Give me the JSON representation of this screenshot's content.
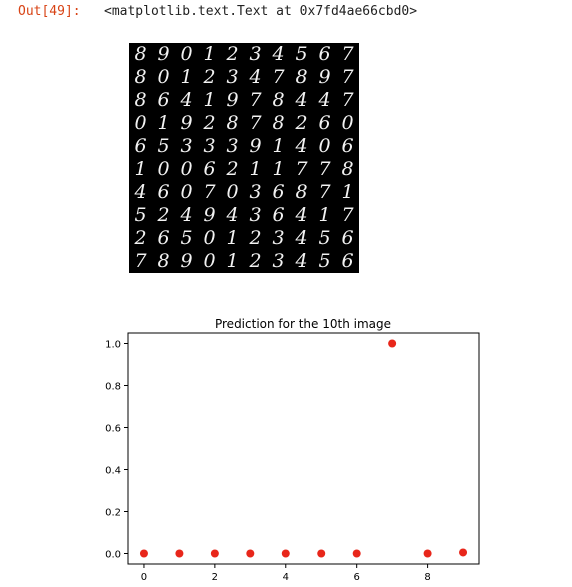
{
  "cell": {
    "prompt": "Out[49]:",
    "output_text": "<matplotlib.text.Text at 0x7fd4ae66cbd0>"
  },
  "image_grid": {
    "rows": [
      [
        "8",
        "9",
        "0",
        "1",
        "2",
        "3",
        "4",
        "5",
        "6",
        "7"
      ],
      [
        "8",
        "0",
        "1",
        "2",
        "3",
        "4",
        "7",
        "8",
        "9",
        "7"
      ],
      [
        "8",
        "6",
        "4",
        "1",
        "9",
        "7",
        "8",
        "4",
        "4",
        "7"
      ],
      [
        "0",
        "1",
        "9",
        "2",
        "8",
        "7",
        "8",
        "2",
        "6",
        "0"
      ],
      [
        "6",
        "5",
        "3",
        "3",
        "3",
        "9",
        "1",
        "4",
        "0",
        "6"
      ],
      [
        "1",
        "0",
        "0",
        "6",
        "2",
        "1",
        "1",
        "7",
        "7",
        "8"
      ],
      [
        "4",
        "6",
        "0",
        "7",
        "0",
        "3",
        "6",
        "8",
        "7",
        "1"
      ],
      [
        "5",
        "2",
        "4",
        "9",
        "4",
        "3",
        "6",
        "4",
        "1",
        "7"
      ],
      [
        "2",
        "6",
        "5",
        "0",
        "1",
        "2",
        "3",
        "4",
        "5",
        "6"
      ],
      [
        "7",
        "8",
        "9",
        "0",
        "1",
        "2",
        "3",
        "4",
        "5",
        "6"
      ]
    ]
  },
  "chart_data": {
    "type": "scatter",
    "title": "Prediction for the 10th image",
    "x": [
      0,
      1,
      2,
      3,
      4,
      5,
      6,
      7,
      8,
      9
    ],
    "y": [
      0.0,
      0.0,
      0.0,
      0.0,
      0.0,
      0.0,
      0.0,
      1.0,
      0.0,
      0.005
    ],
    "xlim": [
      -0.45,
      9.45
    ],
    "ylim": [
      -0.05,
      1.05
    ],
    "xticks": [
      "0",
      "2",
      "4",
      "6",
      "8"
    ],
    "yticks": [
      "0.0",
      "0.2",
      "0.4",
      "0.6",
      "0.8",
      "1.0"
    ],
    "color": "#e8261a",
    "grid": false
  }
}
